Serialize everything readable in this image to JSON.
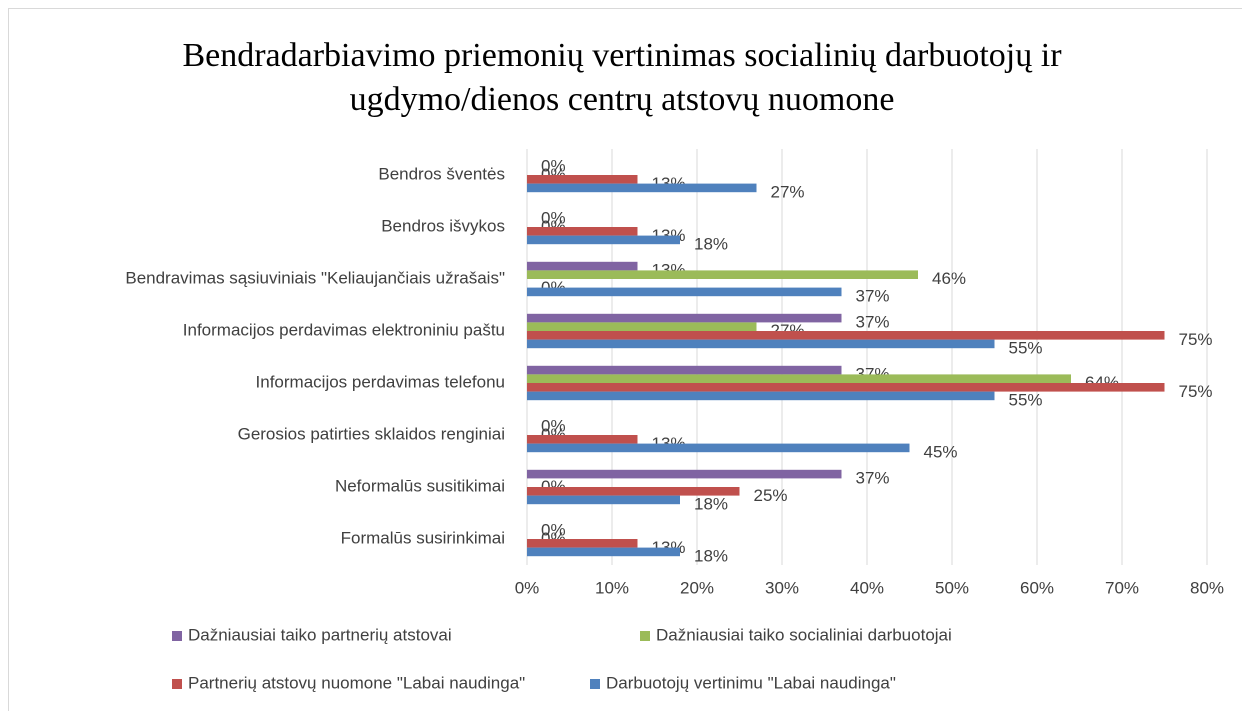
{
  "chart_data": {
    "type": "hbar",
    "title": "Bendradarbiavimo priemonių vertinimas socialinių darbuotojų ir ugdymo/dienos centrų atstovų nuomone",
    "categories": [
      "Bendros šventės",
      "Bendros išvykos",
      "Bendravimas sąsiuviniais \"Keliaujančiais užrašais\"",
      "Informacijos perdavimas elektroniniu paštu",
      "Informacijos perdavimas telefonu",
      "Gerosios patirties sklaidos renginiai",
      "Neformalūs susitikimai",
      "Formalūs susirinkimai"
    ],
    "series": [
      {
        "name": "Dažniausiai taiko partnerių atstovai",
        "color": "#8064a2",
        "values": [
          0,
          0,
          13,
          37,
          37,
          0,
          37,
          0
        ],
        "value_labels": [
          "0%",
          "0%",
          "13%",
          "37%",
          "37%",
          "0%",
          "37%",
          "0%"
        ]
      },
      {
        "name": "Dažniausiai taiko socialiniai darbuotojai",
        "color": "#9bbb59",
        "values": [
          0,
          0,
          46,
          27,
          64,
          0,
          0,
          0
        ],
        "value_labels": [
          "0%",
          "0%",
          "46%",
          "27%",
          "64%",
          "0%",
          "0%",
          "0%"
        ]
      },
      {
        "name": "Partnerių atstovų nuomone \"Labai naudinga\"",
        "color": "#c0504d",
        "values": [
          13,
          13,
          0,
          75,
          75,
          13,
          25,
          13
        ],
        "value_labels": [
          "13%",
          "13%",
          "0%",
          "75%",
          "75%",
          "13%",
          "25%",
          "13%"
        ]
      },
      {
        "name": "Darbuotojų vertinimu \"Labai naudinga\"",
        "color": "#4f81bd",
        "values": [
          27,
          18,
          37,
          55,
          55,
          45,
          18,
          18
        ],
        "value_labels": [
          "27%",
          "18%",
          "37%",
          "55%",
          "55%",
          "45%",
          "18%",
          "18%"
        ]
      }
    ],
    "xlim": [
      0,
      80
    ],
    "xticks": [
      {
        "value": 0,
        "label": "0%"
      },
      {
        "value": 10,
        "label": "10%"
      },
      {
        "value": 20,
        "label": "20%"
      },
      {
        "value": 30,
        "label": "30%"
      },
      {
        "value": 40,
        "label": "40%"
      },
      {
        "value": 50,
        "label": "50%"
      },
      {
        "value": 60,
        "label": "60%"
      },
      {
        "value": 70,
        "label": "70%"
      },
      {
        "value": 80,
        "label": "80%"
      }
    ],
    "grid": true
  }
}
